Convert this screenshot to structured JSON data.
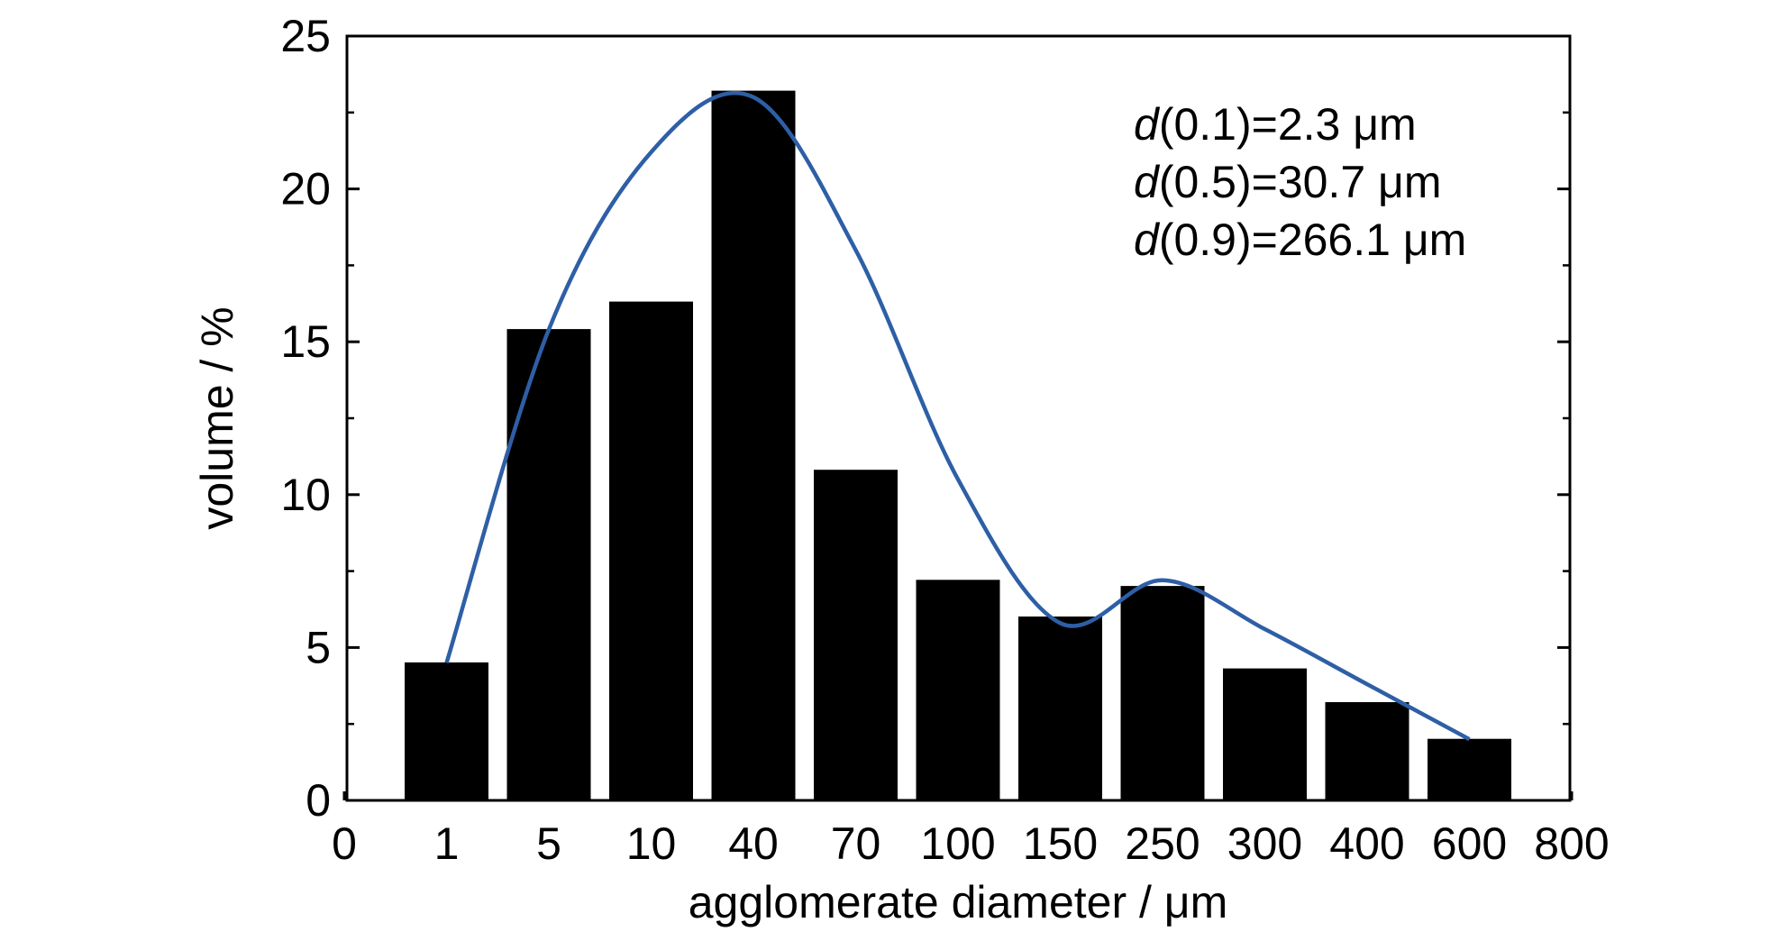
{
  "chart_data": {
    "type": "bar",
    "xlabel": "agglomerate diameter / μm",
    "ylabel": "volume / %",
    "ylim": [
      0,
      25
    ],
    "yticks": [
      0,
      5,
      10,
      15,
      20,
      25
    ],
    "xtick_labels": [
      "0",
      "1",
      "5",
      "10",
      "40",
      "70",
      "100",
      "150",
      "250",
      "300",
      "400",
      "600",
      "800"
    ],
    "categories": [
      "1",
      "5",
      "10",
      "40",
      "70",
      "100",
      "150",
      "250",
      "300",
      "400",
      "600"
    ],
    "values": [
      4.5,
      15.4,
      16.3,
      23.2,
      10.8,
      7.2,
      6.0,
      7.0,
      4.3,
      3.2,
      2.0
    ],
    "bar_color": "#000000",
    "fit_curve": {
      "color": "#2e5fa6",
      "points": [
        {
          "x": "1",
          "y": 4.5
        },
        {
          "x": "5",
          "y": 15.4
        },
        {
          "x": "10",
          "y": 21.2
        },
        {
          "x": "40",
          "y": 23.0
        },
        {
          "x": "70",
          "y": 18.0
        },
        {
          "x": "100",
          "y": 10.5
        },
        {
          "x": "150",
          "y": 5.8
        },
        {
          "x": "250",
          "y": 7.2
        },
        {
          "x": "300",
          "y": 5.6
        },
        {
          "x": "400",
          "y": 3.8
        },
        {
          "x": "600",
          "y": 2.0
        }
      ]
    },
    "annotations": [
      {
        "var": "d",
        "rest": "(0.1)=2.3 μm"
      },
      {
        "var": "d",
        "rest": "(0.5)=30.7 μm"
      },
      {
        "var": "d",
        "rest": "(0.9)=266.1 μm"
      }
    ],
    "grid": false,
    "legend": "none"
  }
}
